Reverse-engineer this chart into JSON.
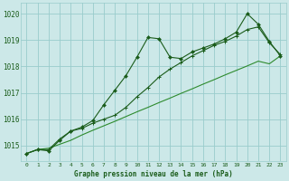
{
  "title": "Graphe pression niveau de la mer (hPa)",
  "background_color": "#cce8e8",
  "grid_color": "#99cccc",
  "line_color_dark": "#1a5c1a",
  "line_color_light": "#2e8b2e",
  "xlim": [
    -0.5,
    23.5
  ],
  "ylim": [
    1014.4,
    1020.4
  ],
  "yticks": [
    1015,
    1016,
    1017,
    1018,
    1019,
    1020
  ],
  "xticks": [
    0,
    1,
    2,
    3,
    4,
    5,
    6,
    7,
    8,
    9,
    10,
    11,
    12,
    13,
    14,
    15,
    16,
    17,
    18,
    19,
    20,
    21,
    22,
    23
  ],
  "series1": [
    1014.7,
    1014.85,
    1014.8,
    1015.2,
    1015.55,
    1015.7,
    1015.95,
    1016.55,
    1017.1,
    1017.65,
    1018.35,
    1019.1,
    1019.05,
    1018.35,
    1018.3,
    1018.55,
    1018.7,
    1018.85,
    1019.05,
    1019.3,
    1020.0,
    1019.6,
    1018.95,
    1018.4
  ],
  "series2": [
    1014.7,
    1014.85,
    1014.85,
    1015.25,
    1015.55,
    1015.65,
    1015.85,
    1016.0,
    1016.15,
    1016.45,
    1016.85,
    1017.2,
    1017.6,
    1017.9,
    1018.15,
    1018.4,
    1018.6,
    1018.8,
    1018.95,
    1019.15,
    1019.4,
    1019.5,
    1018.9,
    1018.45
  ],
  "series3": [
    1014.7,
    1014.85,
    1014.9,
    1015.05,
    1015.2,
    1015.4,
    1015.58,
    1015.75,
    1015.92,
    1016.1,
    1016.28,
    1016.45,
    1016.63,
    1016.8,
    1016.98,
    1017.15,
    1017.33,
    1017.5,
    1017.68,
    1017.85,
    1018.02,
    1018.2,
    1018.1,
    1018.4
  ]
}
